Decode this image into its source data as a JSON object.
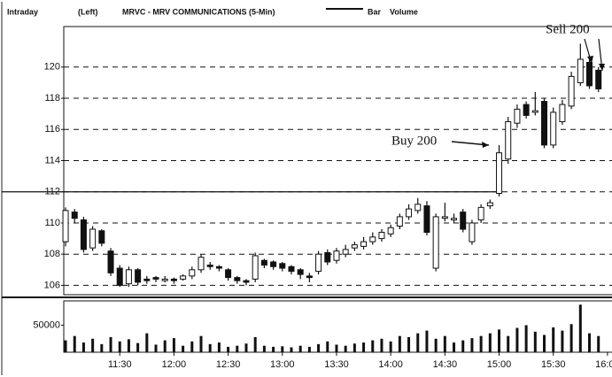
{
  "chart_data": {
    "type": "candlestick",
    "header": [
      "Intraday",
      "(Left)",
      "MRVC - MRV COMMUNICATIONS (5-Min)",
      "Bar",
      "Volume"
    ],
    "series": [
      {
        "name": "MRVC",
        "up_color": "#ffffff",
        "down_color": "#111111",
        "open": [
          108.8,
          110.7,
          110.2,
          108.4,
          109.5,
          108.2,
          107.1,
          106.1,
          107.0,
          106.4,
          106.5,
          106.3,
          106.4,
          106.4,
          106.6,
          107.0,
          107.3,
          107.2,
          107.0,
          106.5,
          106.3,
          106.4,
          107.6,
          107.5,
          107.4,
          107.2,
          107.0,
          106.6,
          106.9,
          108.1,
          107.6,
          108.0,
          108.4,
          108.5,
          108.8,
          109.0,
          109.3,
          109.8,
          110.4,
          110.8,
          111.1,
          107.1,
          110.3,
          110.2,
          110.7,
          108.8,
          110.2,
          111.1,
          111.9,
          114.1,
          116.4,
          117.6,
          117.1,
          117.8,
          115.0,
          116.5,
          117.5,
          119.0,
          120.3,
          119.8
        ],
        "high": [
          111.0,
          110.9,
          110.4,
          109.8,
          109.6,
          108.4,
          107.3,
          107.2,
          107.1,
          106.6,
          106.6,
          106.6,
          106.5,
          106.7,
          107.2,
          108.0,
          107.5,
          107.3,
          107.1,
          106.6,
          106.4,
          108.1,
          107.7,
          107.6,
          107.5,
          107.3,
          107.1,
          106.8,
          108.2,
          108.3,
          108.4,
          108.6,
          108.8,
          109.1,
          109.4,
          109.6,
          109.9,
          110.6,
          111.2,
          111.6,
          111.4,
          110.6,
          111.3,
          110.6,
          110.9,
          110.2,
          111.2,
          111.5,
          115.0,
          116.8,
          117.6,
          117.8,
          118.4,
          118.0,
          117.4,
          117.9,
          119.7,
          121.5,
          120.6,
          120.0
        ],
        "low": [
          108.5,
          110.0,
          108.1,
          108.2,
          108.5,
          106.6,
          105.9,
          105.9,
          106.0,
          106.1,
          106.2,
          106.2,
          106.1,
          106.3,
          106.4,
          106.8,
          107.0,
          106.9,
          106.3,
          106.1,
          106.0,
          106.2,
          107.1,
          107.0,
          106.9,
          106.7,
          106.4,
          106.2,
          106.7,
          107.3,
          107.4,
          107.8,
          108.2,
          108.3,
          108.6,
          108.8,
          109.1,
          109.6,
          110.2,
          110.6,
          109.2,
          106.9,
          110.1,
          110.0,
          109.4,
          108.6,
          110.0,
          110.9,
          111.7,
          113.8,
          116.1,
          116.7,
          116.9,
          114.8,
          114.8,
          116.3,
          117.3,
          118.8,
          118.6,
          118.4
        ],
        "close": [
          110.8,
          110.3,
          108.3,
          109.6,
          108.7,
          106.8,
          106.0,
          107.0,
          106.2,
          106.3,
          106.4,
          106.4,
          106.3,
          106.6,
          107.0,
          107.8,
          107.2,
          107.1,
          106.5,
          106.3,
          106.2,
          107.9,
          107.3,
          107.2,
          107.1,
          106.9,
          106.7,
          106.5,
          108.0,
          107.5,
          108.2,
          108.3,
          108.6,
          108.8,
          109.1,
          109.4,
          109.7,
          110.4,
          110.9,
          111.2,
          109.4,
          110.4,
          110.4,
          110.3,
          109.6,
          110.0,
          111.0,
          111.3,
          114.5,
          116.5,
          117.3,
          116.9,
          117.2,
          115.0,
          117.1,
          117.6,
          119.4,
          120.5,
          118.8,
          118.6
        ]
      }
    ],
    "volume": {
      "color": "#111111",
      "values": [
        22000,
        30000,
        18000,
        25000,
        15000,
        28000,
        20000,
        24000,
        17000,
        35000,
        14000,
        22000,
        26000,
        12000,
        20000,
        30000,
        15000,
        18000,
        10000,
        12000,
        16000,
        28000,
        12000,
        10000,
        11000,
        9000,
        12000,
        10000,
        15000,
        20000,
        14000,
        12000,
        16000,
        18000,
        22000,
        25000,
        20000,
        30000,
        28000,
        35000,
        40000,
        25000,
        30000,
        18000,
        22000,
        26000,
        30000,
        35000,
        42000,
        30000,
        45000,
        50000,
        38000,
        32000,
        46000,
        40000,
        52000,
        88000,
        35000,
        30000
      ],
      "ylim": [
        0,
        95000
      ],
      "yticks": [
        50000
      ]
    },
    "xlim": [
      -0.2,
      60.5
    ],
    "xticks": [
      {
        "value": 6,
        "label": "11:30"
      },
      {
        "value": 12,
        "label": "12:00"
      },
      {
        "value": 18,
        "label": "12:30"
      },
      {
        "value": 24,
        "label": "13:00"
      },
      {
        "value": 30,
        "label": "13:30"
      },
      {
        "value": 36,
        "label": "14:00"
      },
      {
        "value": 42,
        "label": "14:30"
      },
      {
        "value": 48,
        "label": "15:00"
      },
      {
        "value": 54,
        "label": "15:30"
      },
      {
        "value": 60,
        "label": "16:00"
      }
    ],
    "ylim": [
      105.4,
      122.6
    ],
    "yticks": [
      106,
      108,
      110,
      112,
      114,
      116,
      118,
      120
    ],
    "grid": true,
    "level_line": 112,
    "annotations": [
      "Buy 200",
      "Sell 200"
    ]
  }
}
